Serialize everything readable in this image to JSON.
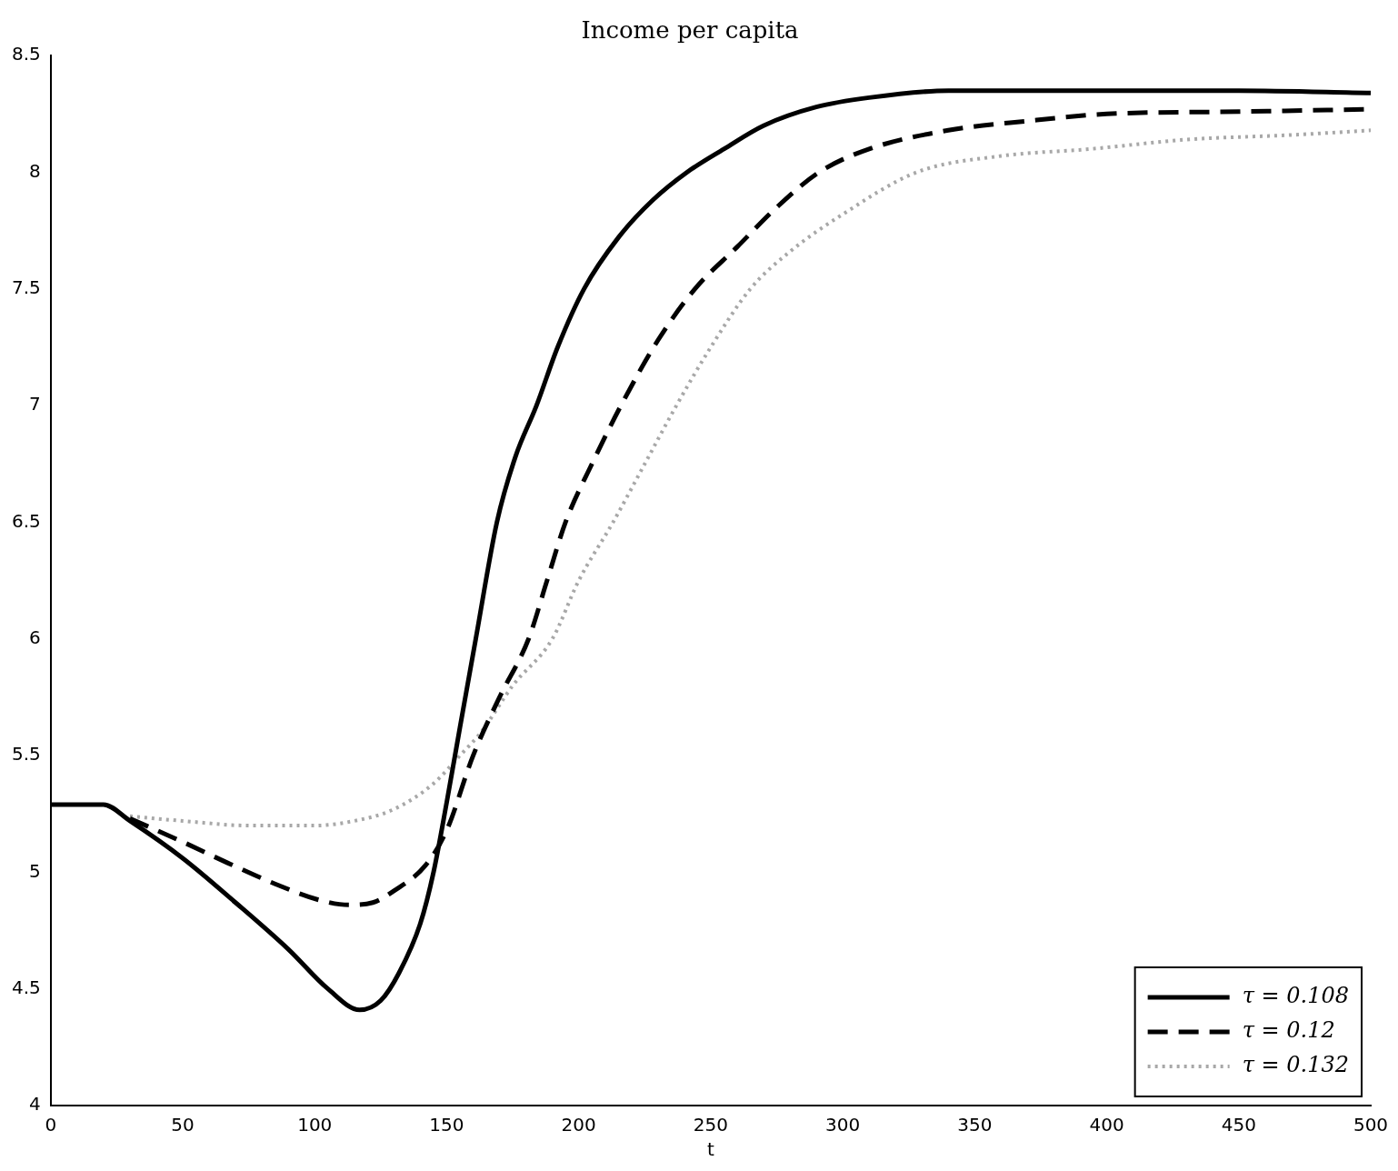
{
  "chart_data": {
    "type": "line",
    "title": "Income per capita",
    "xlabel": "t",
    "xlim": [
      0,
      500
    ],
    "xticks": [
      0,
      50,
      100,
      150,
      200,
      250,
      300,
      350,
      400,
      450,
      500
    ],
    "ylim": [
      4,
      8.5
    ],
    "yticks": [
      4,
      4.5,
      5,
      5.5,
      6,
      6.5,
      7,
      7.5,
      8,
      8.5
    ],
    "grid": false,
    "legend": "bottom right",
    "marker": "none",
    "series": [
      {
        "name": "τ = 0.108",
        "color": "#000000",
        "line_style": "solid",
        "x": [
          0,
          20,
          30,
          50,
          70,
          90,
          105,
          117,
          125,
          132,
          140,
          145,
          150,
          155,
          161,
          169,
          176,
          184,
          192,
          202,
          215,
          228,
          241,
          255,
          270,
          290,
          310,
          340,
          400,
          450,
          500
        ],
        "values": [
          5.29,
          5.29,
          5.22,
          5.06,
          4.87,
          4.67,
          4.5,
          4.41,
          4.45,
          4.57,
          4.78,
          5.0,
          5.3,
          5.62,
          6.0,
          6.5,
          6.78,
          7.0,
          7.25,
          7.5,
          7.72,
          7.88,
          8.0,
          8.1,
          8.2,
          8.28,
          8.32,
          8.35,
          8.35,
          8.35,
          8.34
        ]
      },
      {
        "name": "τ = 0.12",
        "color": "#000000",
        "line_style": "dashed",
        "x": [
          30,
          50,
          67,
          85,
          102,
          113,
          122,
          130,
          142,
          150,
          160,
          170,
          181,
          188,
          195,
          205,
          216,
          230,
          244,
          260,
          275,
          291,
          310,
          340,
          370,
          400,
          450,
          500
        ],
        "values": [
          5.23,
          5.13,
          5.04,
          4.95,
          4.88,
          4.86,
          4.87,
          4.92,
          5.03,
          5.18,
          5.5,
          5.75,
          6.0,
          6.25,
          6.5,
          6.75,
          7.0,
          7.28,
          7.5,
          7.68,
          7.85,
          8.0,
          8.1,
          8.18,
          8.22,
          8.25,
          8.26,
          8.27
        ]
      },
      {
        "name": "τ = 0.132",
        "color": "#a8a8a8",
        "line_style": "dotted",
        "x": [
          30,
          50,
          75,
          100,
          115,
          130,
          145,
          155,
          163,
          175,
          190,
          200,
          213,
          225,
          237,
          250,
          265,
          280,
          300,
          328,
          360,
          394,
          430,
          470,
          500
        ],
        "values": [
          5.24,
          5.22,
          5.2,
          5.2,
          5.22,
          5.27,
          5.38,
          5.5,
          5.6,
          5.8,
          6.0,
          6.25,
          6.5,
          6.75,
          7.0,
          7.25,
          7.5,
          7.66,
          7.82,
          8.0,
          8.07,
          8.1,
          8.14,
          8.16,
          8.18
        ]
      }
    ]
  }
}
